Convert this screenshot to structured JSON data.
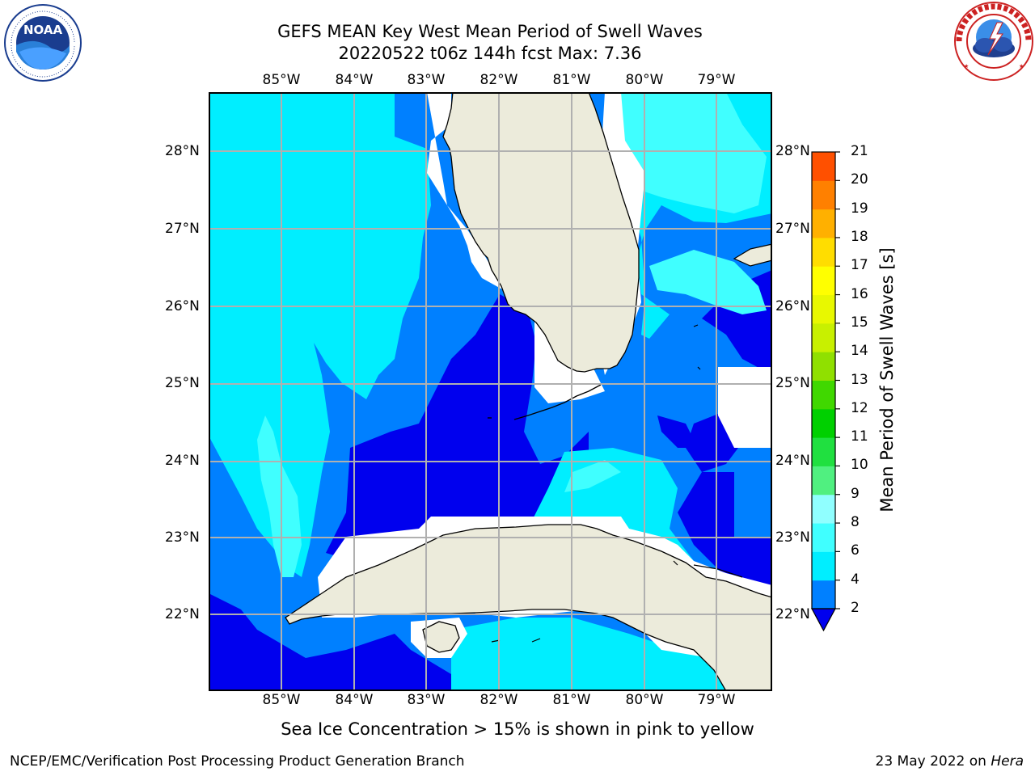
{
  "header": {
    "title_line1": "GEFS MEAN Key West Mean Period of Swell Waves",
    "title_line2": "20220522 t06z 144h fcst   Max: 7.36"
  },
  "logos": {
    "left": {
      "name": "noaa-logo",
      "text": "NOAA",
      "ring_text": "NATIONAL OCEANIC AND ATMOSPHERIC ADMINISTRATION · U.S. DEPARTMENT OF COMMERCE"
    },
    "right": {
      "name": "nws-logo",
      "ring_text": "NATIONAL WEATHER SERVICE"
    }
  },
  "map": {
    "lon_labels": [
      "85°W",
      "84°W",
      "83°W",
      "82°W",
      "81°W",
      "80°W",
      "79°W"
    ],
    "lat_labels": [
      "28°N",
      "27°N",
      "26°N",
      "25°N",
      "24°N",
      "23°N",
      "22°N"
    ],
    "extent": {
      "lon_min": -86.0,
      "lon_max": -78.3,
      "lat_min": 21.0,
      "lat_max": 28.75
    },
    "colors": {
      "land": "#ecebdb",
      "coast": "#000000",
      "grid": "#b0b0b0",
      "missing": "#ffffff"
    },
    "regions": [
      "Florida",
      "Cuba",
      "Isla de la Juventud",
      "Florida Keys",
      "Bahamas"
    ]
  },
  "colorbar": {
    "label": "Mean Period of Swell Waves [s]",
    "ticks": [
      "2",
      "4",
      "6",
      "8",
      "9",
      "10",
      "11",
      "12",
      "13",
      "14",
      "15",
      "16",
      "17",
      "18",
      "19",
      "20",
      "21"
    ],
    "colors": [
      "#0000ee",
      "#0080ff",
      "#00eeff",
      "#40ffff",
      "#90ffff",
      "#50f080",
      "#20e040",
      "#00d000",
      "#40d800",
      "#90e000",
      "#c8f000",
      "#e8f800",
      "#ffff00",
      "#ffdd00",
      "#ffb000",
      "#ff8000",
      "#ff5000",
      "#ff2000"
    ],
    "extend": "min"
  },
  "chart_data": {
    "type": "heatmap",
    "title": "GEFS MEAN Key West Mean Period of Swell Waves",
    "subtitle": "20220522 t06z 144h fcst   Max: 7.36",
    "max_value": 7.36,
    "units": "s",
    "colorbar_label": "Mean Period of Swell Waves [s]",
    "levels": [
      2,
      4,
      6,
      8,
      9,
      10,
      11,
      12,
      13,
      14,
      15,
      16,
      17,
      18,
      19,
      20,
      21
    ]
  },
  "subtitle": "Sea Ice Concentration > 15% is shown in pink to yellow",
  "footer": {
    "left": "NCEP/EMC/Verification Post Processing Product Generation Branch",
    "right_prefix": "23 May 2022 on ",
    "right_host": "Hera"
  }
}
